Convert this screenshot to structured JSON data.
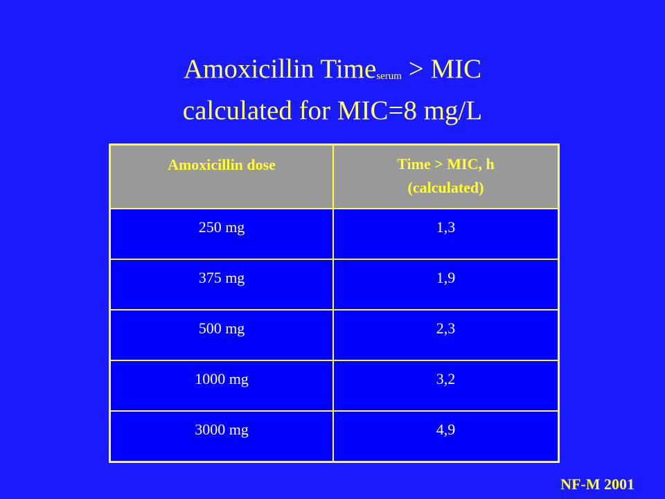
{
  "slide": {
    "title_line1_main": "Amoxicillin Time",
    "title_line1_sub": "serum",
    "title_line1_rest": " > MIC",
    "title_line2": "calculated for MIC=8 mg/L",
    "footer": "NF-M 2001",
    "colors": {
      "background": "#1a1aff",
      "title_text": "#ffff66",
      "border": "#ffff33",
      "header_bg": "#999999",
      "cell_bg": "#0000ff",
      "cell_text": "#ffffff"
    }
  },
  "table": {
    "headers": {
      "dose": "Amoxicillin dose",
      "time_line1": "Time > MIC, h",
      "time_line2": "(calculated)"
    },
    "rows": [
      {
        "dose": "250 mg",
        "time": "1,3"
      },
      {
        "dose": "375 mg",
        "time": "1,9"
      },
      {
        "dose": "500 mg",
        "time": "2,3"
      },
      {
        "dose": "1000 mg",
        "time": "3,2"
      },
      {
        "dose": "3000 mg",
        "time": "4,9"
      }
    ]
  }
}
